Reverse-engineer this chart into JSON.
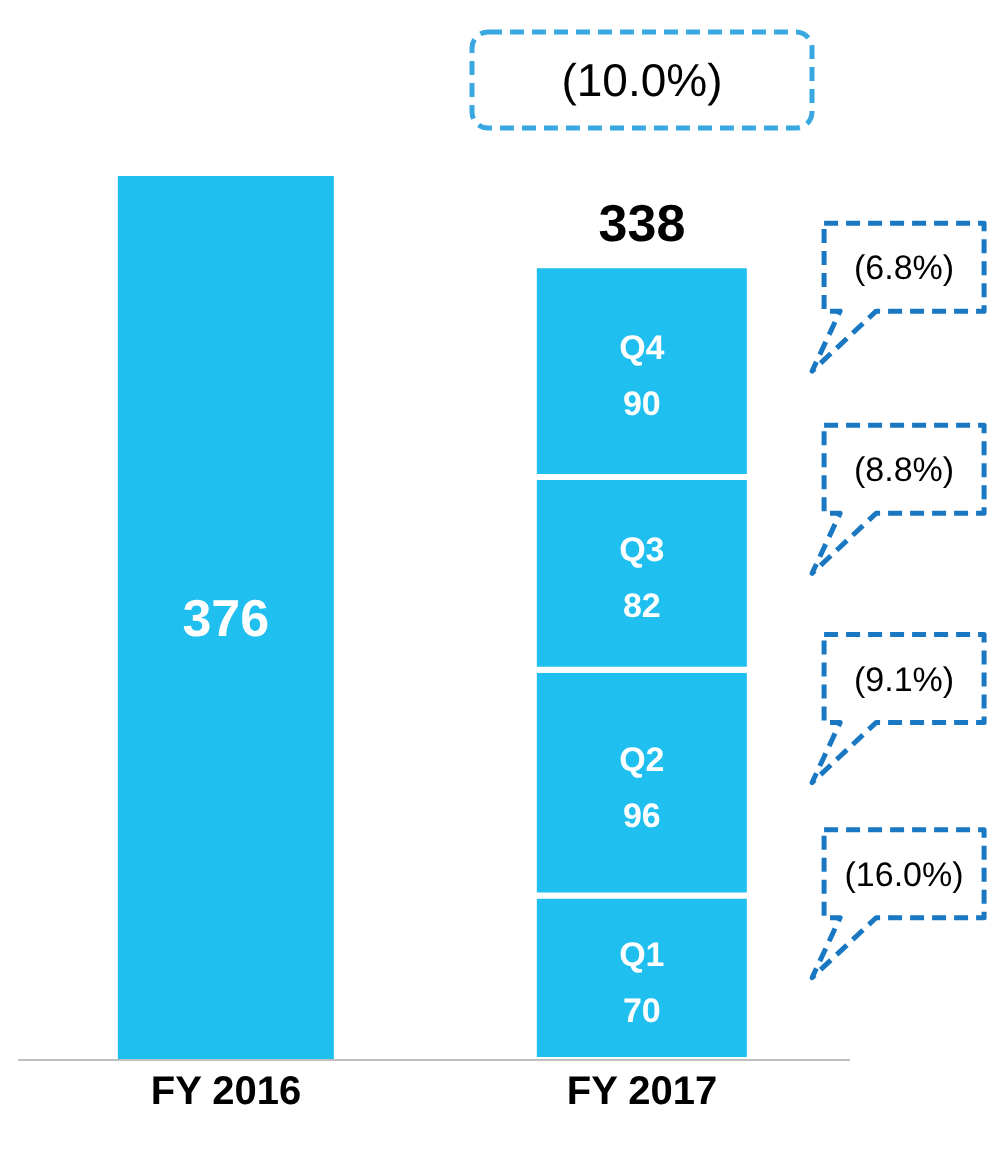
{
  "chart_data": {
    "type": "bar",
    "stacked": true,
    "categories": [
      "FY 2016",
      "FY 2017"
    ],
    "series": [
      {
        "color": "#1fbff0",
        "values": [
          376,
          null
        ]
      },
      {
        "name": "Q1",
        "color": "#1fbff0",
        "values": [
          null,
          70
        ]
      },
      {
        "name": "Q2",
        "color": "#1fbff0",
        "values": [
          null,
          96
        ]
      },
      {
        "name": "Q3",
        "color": "#1fbff0",
        "values": [
          null,
          82
        ]
      },
      {
        "name": "Q4",
        "color": "#1fbff0",
        "values": [
          null,
          90
        ]
      }
    ],
    "data_labels": true,
    "totals": [
      null,
      "338"
    ],
    "grid": false,
    "legend": false,
    "tick_labels": "x",
    "annotations": [
      "(10.0%)",
      "(6.8%)",
      "(8.8%)",
      "(9.1%)",
      "(16.0%)"
    ]
  }
}
